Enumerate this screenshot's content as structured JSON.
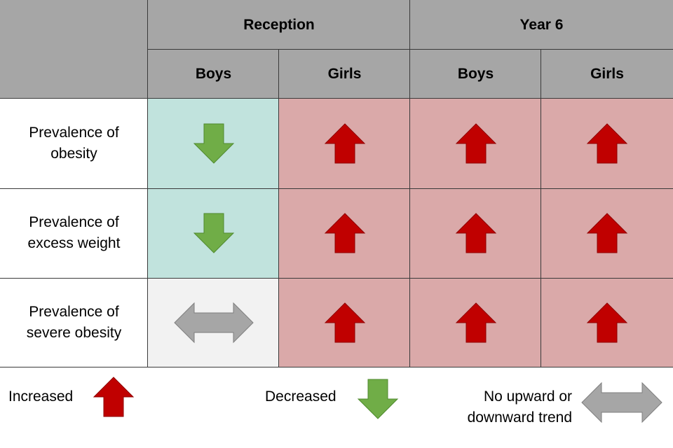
{
  "header": {
    "reception": "Reception",
    "year6": "Year 6",
    "sub": [
      "Boys",
      "Girls",
      "Boys",
      "Girls"
    ]
  },
  "rows": [
    {
      "line1": "Prevalence of",
      "line2": "obesity",
      "trends": [
        "decreased",
        "increased",
        "increased",
        "increased"
      ]
    },
    {
      "line1": "Prevalence of",
      "line2": "excess weight",
      "trends": [
        "decreased",
        "increased",
        "increased",
        "increased"
      ]
    },
    {
      "line1": "Prevalence of",
      "line2": "severe obesity",
      "trends": [
        "no-trend",
        "increased",
        "increased",
        "increased"
      ]
    }
  ],
  "legend": {
    "increased": "Increased",
    "decreased": "Decreased",
    "no_trend_line1": "No upward or",
    "no_trend_line2": "downward trend"
  },
  "colors": {
    "header_bg": "#a6a6a6",
    "increased_bg": "#daa9a9",
    "decreased_bg": "#c1e3dd",
    "no_trend_bg": "#f2f2f2",
    "up_arrow": "#c00000",
    "down_arrow": "#70ad47",
    "flat_arrow": "#a6a6a6"
  }
}
